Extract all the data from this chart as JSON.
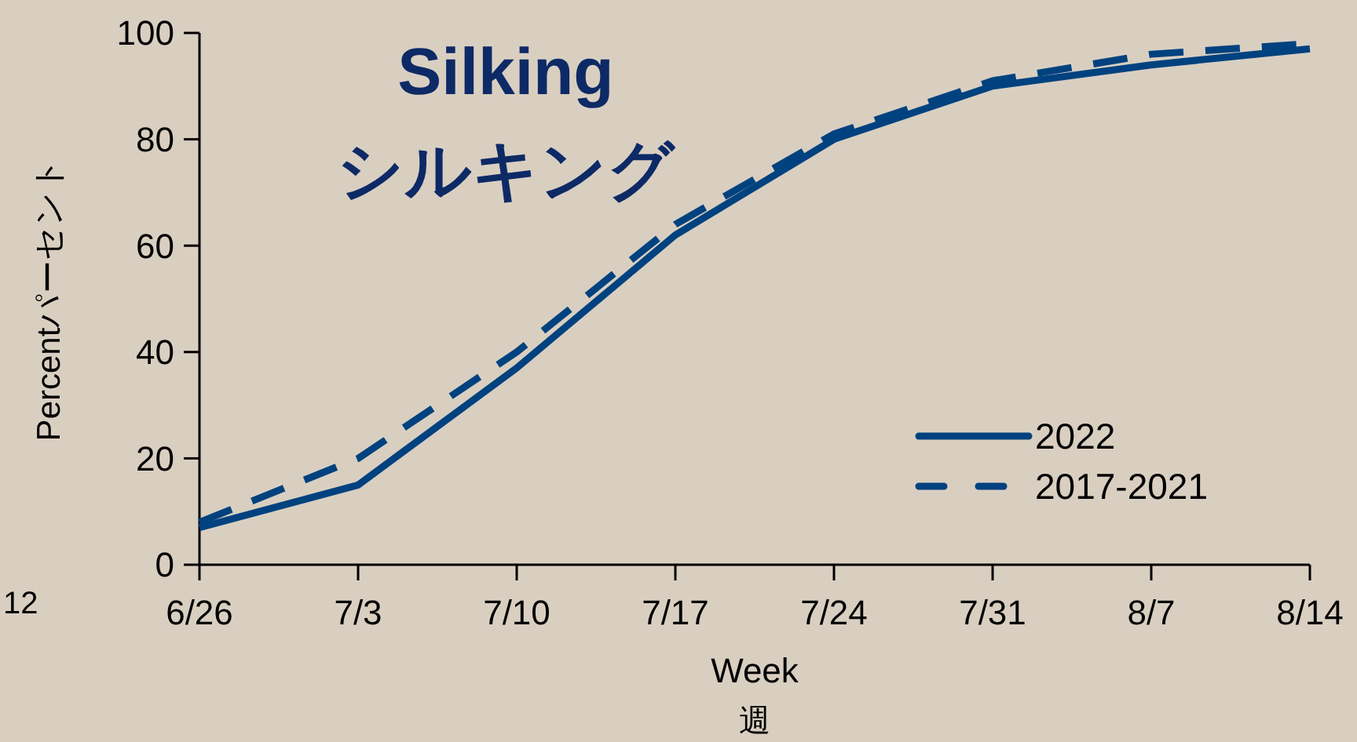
{
  "chart_data": {
    "type": "line",
    "title": "Silking",
    "subtitle": "シルキング",
    "xlabel": "Week\n週",
    "ylabel": "Percentパーセント",
    "annotations": [
      "12"
    ],
    "categories": [
      "6/26",
      "7/3",
      "7/10",
      "7/17",
      "7/24",
      "7/31",
      "8/7",
      "8/14"
    ],
    "series": [
      {
        "name": "2022",
        "color": "#00427f",
        "values": [
          7,
          15,
          37,
          62,
          80,
          90,
          94,
          97
        ],
        "line_style": "solid"
      },
      {
        "name": "2017-2021",
        "color": "#00427f",
        "values": [
          8,
          20,
          40,
          64,
          81,
          91,
          96,
          98
        ],
        "line_style": "dashed"
      }
    ],
    "ylim": [
      0,
      100
    ],
    "yticks": [
      0,
      20,
      40,
      60,
      80,
      100
    ],
    "grid": false,
    "legend": "bottom right",
    "marker": "none"
  }
}
